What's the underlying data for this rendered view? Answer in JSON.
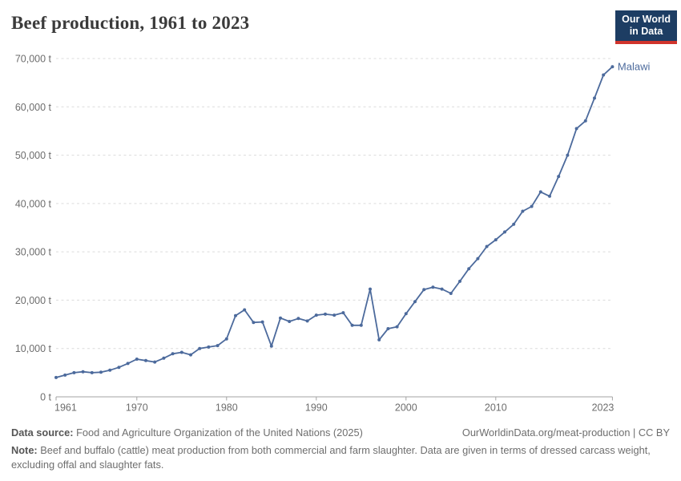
{
  "header": {
    "title": "Beef production, 1961 to 2023",
    "logo_line1": "Our World",
    "logo_line2": "in Data"
  },
  "chart_data": {
    "type": "line",
    "title": "Beef production, 1961 to 2023",
    "unit": "t",
    "xlim": [
      1961,
      2023
    ],
    "ylim": [
      0,
      70000
    ],
    "x_ticks": [
      1961,
      1970,
      1980,
      1990,
      2000,
      2010,
      2023
    ],
    "y_ticks": [
      0,
      10000,
      20000,
      30000,
      40000,
      50000,
      60000,
      70000
    ],
    "grid": "dashed-horizontal",
    "legend_position": "end-of-line-label",
    "line_color": "#4c6a9c",
    "x": [
      1961,
      1962,
      1963,
      1964,
      1965,
      1966,
      1967,
      1968,
      1969,
      1970,
      1971,
      1972,
      1973,
      1974,
      1975,
      1976,
      1977,
      1978,
      1979,
      1980,
      1981,
      1982,
      1983,
      1984,
      1985,
      1986,
      1987,
      1988,
      1989,
      1990,
      1991,
      1992,
      1993,
      1994,
      1995,
      1996,
      1997,
      1998,
      1999,
      2000,
      2001,
      2002,
      2003,
      2004,
      2005,
      2006,
      2007,
      2008,
      2009,
      2010,
      2011,
      2012,
      2013,
      2014,
      2015,
      2016,
      2017,
      2018,
      2019,
      2020,
      2021,
      2022,
      2023
    ],
    "series": [
      {
        "name": "Malawi",
        "values": [
          4000,
          4500,
          5000,
          5200,
          5000,
          5100,
          5500,
          6100,
          6900,
          7800,
          7500,
          7200,
          8000,
          8900,
          9200,
          8700,
          10000,
          10300,
          10600,
          12000,
          16800,
          18000,
          15400,
          15500,
          10500,
          16300,
          15600,
          16200,
          15700,
          16900,
          17100,
          16900,
          17400,
          14800,
          14800,
          22300,
          11800,
          14100,
          14500,
          17200,
          19700,
          22200,
          22700,
          22300,
          21400,
          23900,
          26500,
          28600,
          31100,
          32500,
          34100,
          35700,
          38400,
          39400,
          42400,
          41500,
          45600,
          50000,
          55500,
          57100,
          61800,
          66600,
          68300
        ]
      }
    ]
  },
  "footer": {
    "source_label": "Data source:",
    "source_text": "Food and Agriculture Organization of the United Nations (2025)",
    "link_text": "OurWorldinData.org/meat-production | CC BY",
    "note_label": "Note:",
    "note_text": "Beef and buffalo (cattle) meat production from both commercial and farm slaughter. Data are given in terms of dressed carcass weight, excluding offal and slaughter fats."
  },
  "colors": {
    "line": "#4c6a9c",
    "grid": "#dcdcdc",
    "axis": "#a3a3a3",
    "tick_label": "#6d6d6d",
    "title": "#3b3b3b",
    "logo_bg": "#1d3d63",
    "logo_red": "#d0342c"
  }
}
